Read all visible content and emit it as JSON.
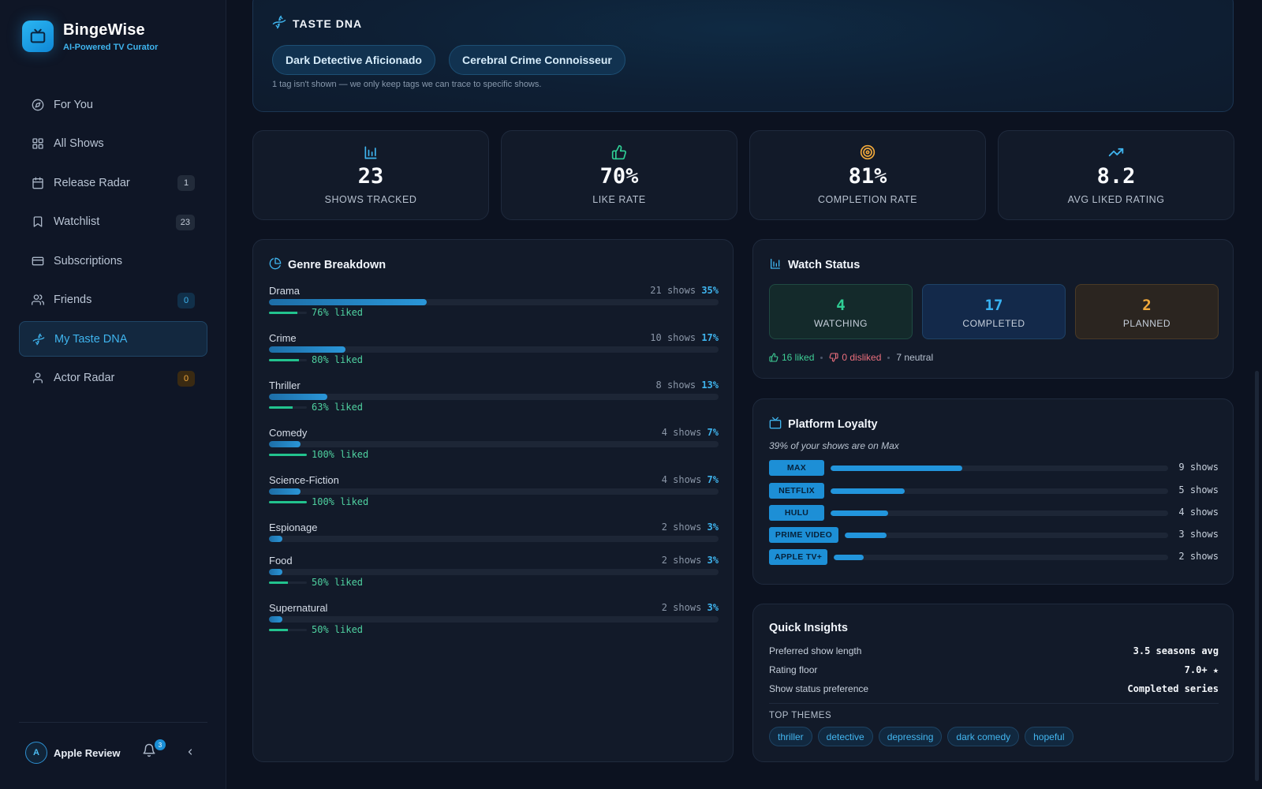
{
  "app": {
    "name": "BingeWise",
    "tagline": "AI-Powered TV Curator"
  },
  "sidebar": {
    "items": [
      {
        "label": "For You",
        "icon": "compass-icon"
      },
      {
        "label": "All Shows",
        "icon": "grid-icon"
      },
      {
        "label": "Release Radar",
        "icon": "calendar-icon",
        "badge": "1"
      },
      {
        "label": "Watchlist",
        "icon": "bookmark-icon",
        "badge": "23"
      },
      {
        "label": "Subscriptions",
        "icon": "credit-card-icon"
      },
      {
        "label": "Friends",
        "icon": "users-icon",
        "badge": "0"
      },
      {
        "label": "My Taste DNA",
        "icon": "dna-icon",
        "active": true
      },
      {
        "label": "Actor Radar",
        "icon": "user-icon",
        "badge": "0"
      }
    ],
    "user": {
      "initial": "A",
      "name": "Apple Review",
      "notifications": "3"
    }
  },
  "taste_dna": {
    "title": "TASTE DNA",
    "tags": [
      "Dark Detective Aficionado",
      "Cerebral Crime Connoisseur"
    ],
    "note": "1 tag isn't shown — we only keep tags we can trace to specific shows."
  },
  "stats": [
    {
      "value": "23",
      "label": "SHOWS TRACKED",
      "icon": "bar-chart-icon",
      "color": "#3fb4ee"
    },
    {
      "value": "70%",
      "label": "LIKE RATE",
      "icon": "thumbs-up-icon",
      "color": "#2fcf95"
    },
    {
      "value": "81%",
      "label": "COMPLETION RATE",
      "icon": "target-icon",
      "color": "#f2a93b"
    },
    {
      "value": "8.2",
      "label": "AVG LIKED RATING",
      "icon": "trending-up-icon",
      "color": "#3fb4ee"
    }
  ],
  "genres": {
    "title": "Genre Breakdown",
    "rows": [
      {
        "name": "Drama",
        "count": "21 shows",
        "pct": "35%",
        "share": 0.35,
        "liked": "76% liked",
        "liked_frac": 0.76
      },
      {
        "name": "Crime",
        "count": "10 shows",
        "pct": "17%",
        "share": 0.17,
        "liked": "80% liked",
        "liked_frac": 0.8
      },
      {
        "name": "Thriller",
        "count": "8 shows",
        "pct": "13%",
        "share": 0.13,
        "liked": "63% liked",
        "liked_frac": 0.63
      },
      {
        "name": "Comedy",
        "count": "4 shows",
        "pct": "7%",
        "share": 0.07,
        "liked": "100% liked",
        "liked_frac": 1.0
      },
      {
        "name": "Science-Fiction",
        "count": "4 shows",
        "pct": "7%",
        "share": 0.07,
        "liked": "100% liked",
        "liked_frac": 1.0
      },
      {
        "name": "Espionage",
        "count": "2 shows",
        "pct": "3%",
        "share": 0.03,
        "liked": "",
        "liked_frac": 0
      },
      {
        "name": "Food",
        "count": "2 shows",
        "pct": "3%",
        "share": 0.03,
        "liked": "50% liked",
        "liked_frac": 0.5
      },
      {
        "name": "Supernatural",
        "count": "2 shows",
        "pct": "3%",
        "share": 0.03,
        "liked": "50% liked",
        "liked_frac": 0.5
      }
    ]
  },
  "watch_status": {
    "title": "Watch Status",
    "watching": {
      "value": "4",
      "label": "WATCHING"
    },
    "completed": {
      "value": "17",
      "label": "COMPLETED"
    },
    "planned": {
      "value": "2",
      "label": "PLANNED"
    },
    "liked": "16 liked",
    "disliked": "0 disliked",
    "neutral": "7 neutral"
  },
  "platforms": {
    "title": "Platform Loyalty",
    "subtitle": "39% of your shows are on Max",
    "rows": [
      {
        "name": "MAX",
        "count": "9 shows",
        "share": 0.39
      },
      {
        "name": "NETFLIX",
        "count": "5 shows",
        "share": 0.22
      },
      {
        "name": "HULU",
        "count": "4 shows",
        "share": 0.17
      },
      {
        "name": "PRIME VIDEO",
        "count": "3 shows",
        "share": 0.13
      },
      {
        "name": "APPLE TV+",
        "count": "2 shows",
        "share": 0.09
      }
    ]
  },
  "insights": {
    "title": "Quick Insights",
    "rows": [
      {
        "label": "Preferred show length",
        "value": "3.5 seasons avg"
      },
      {
        "label": "Rating floor",
        "value": "7.0+ ★"
      },
      {
        "label": "Show status preference",
        "value": "Completed series"
      }
    ],
    "themes_label": "TOP THEMES",
    "themes": [
      "thriller",
      "detective",
      "depressing",
      "dark comedy",
      "hopeful"
    ]
  }
}
